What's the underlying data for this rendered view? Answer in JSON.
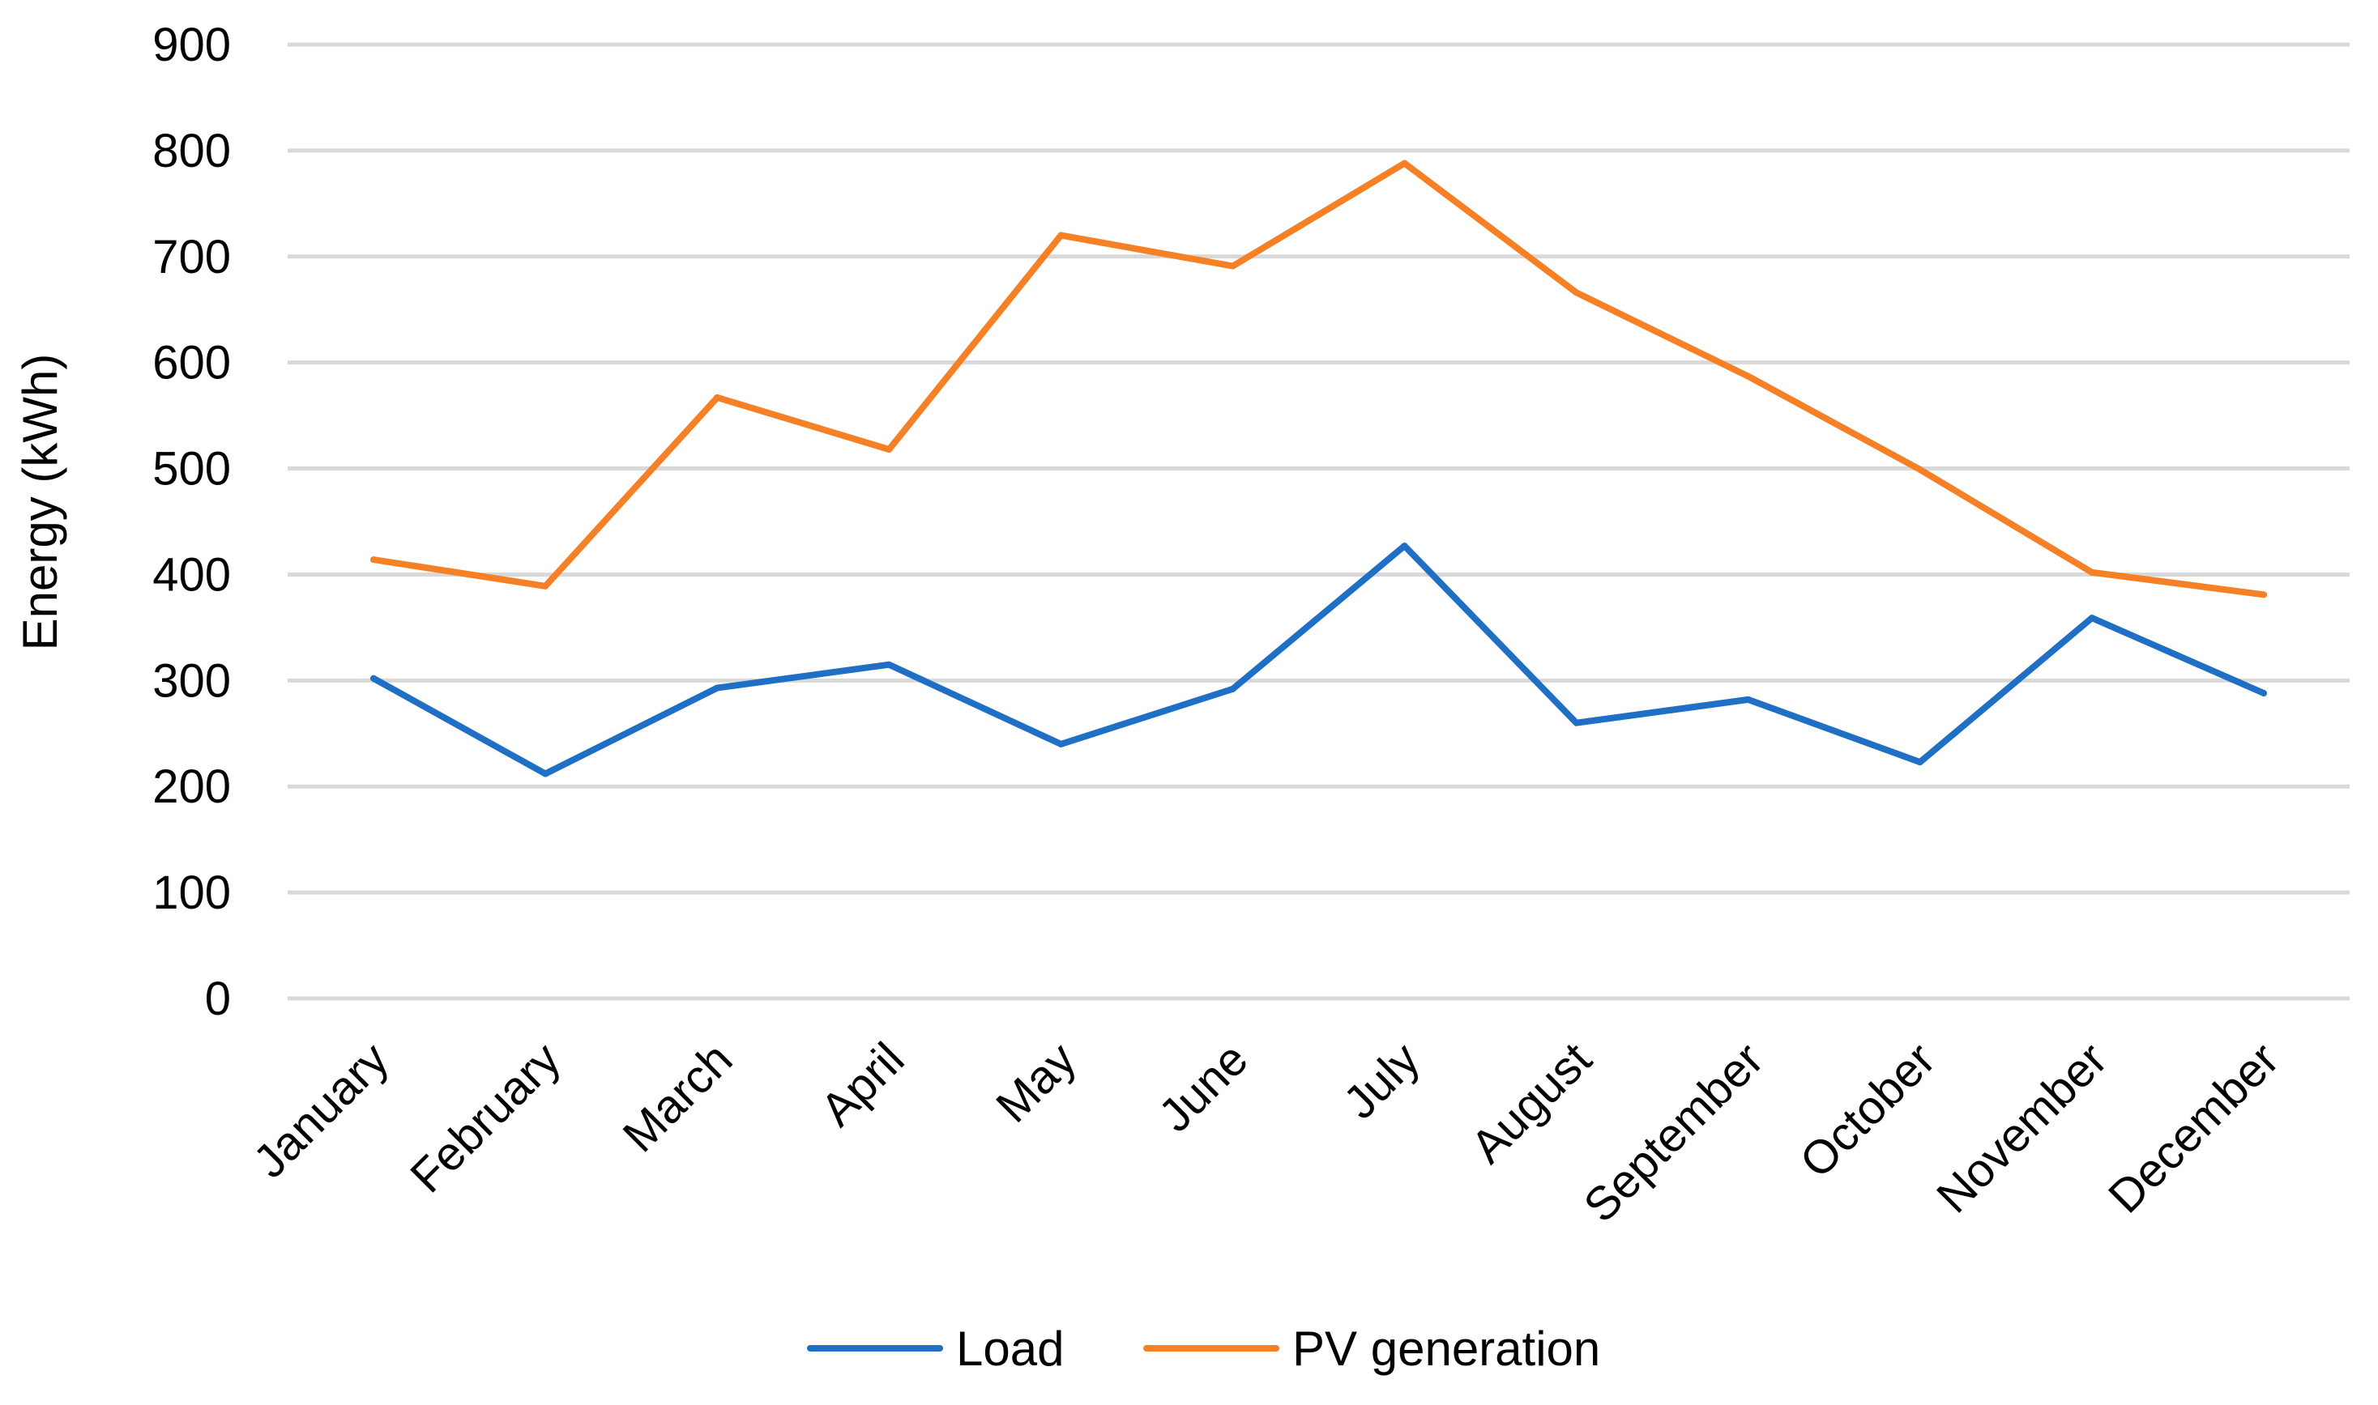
{
  "chart_data": {
    "type": "line",
    "title": "",
    "xlabel": "",
    "ylabel": "Energy (kWh)",
    "ylim": [
      0,
      900
    ],
    "yticks": [
      0,
      100,
      200,
      300,
      400,
      500,
      600,
      700,
      800,
      900
    ],
    "grid": true,
    "legend_position": "bottom",
    "categories": [
      "January",
      "February",
      "March",
      "April",
      "May",
      "June",
      "July",
      "August",
      "September",
      "October",
      "November",
      "December"
    ],
    "series": [
      {
        "name": "Load",
        "color": "#1f6fc5",
        "values": [
          302,
          212,
          293,
          315,
          240,
          292,
          427,
          260,
          282,
          223,
          359,
          288
        ]
      },
      {
        "name": "PV generation",
        "color": "#f58025",
        "values": [
          414,
          389,
          567,
          518,
          720,
          691,
          788,
          666,
          587,
          499,
          402,
          381
        ]
      }
    ]
  }
}
